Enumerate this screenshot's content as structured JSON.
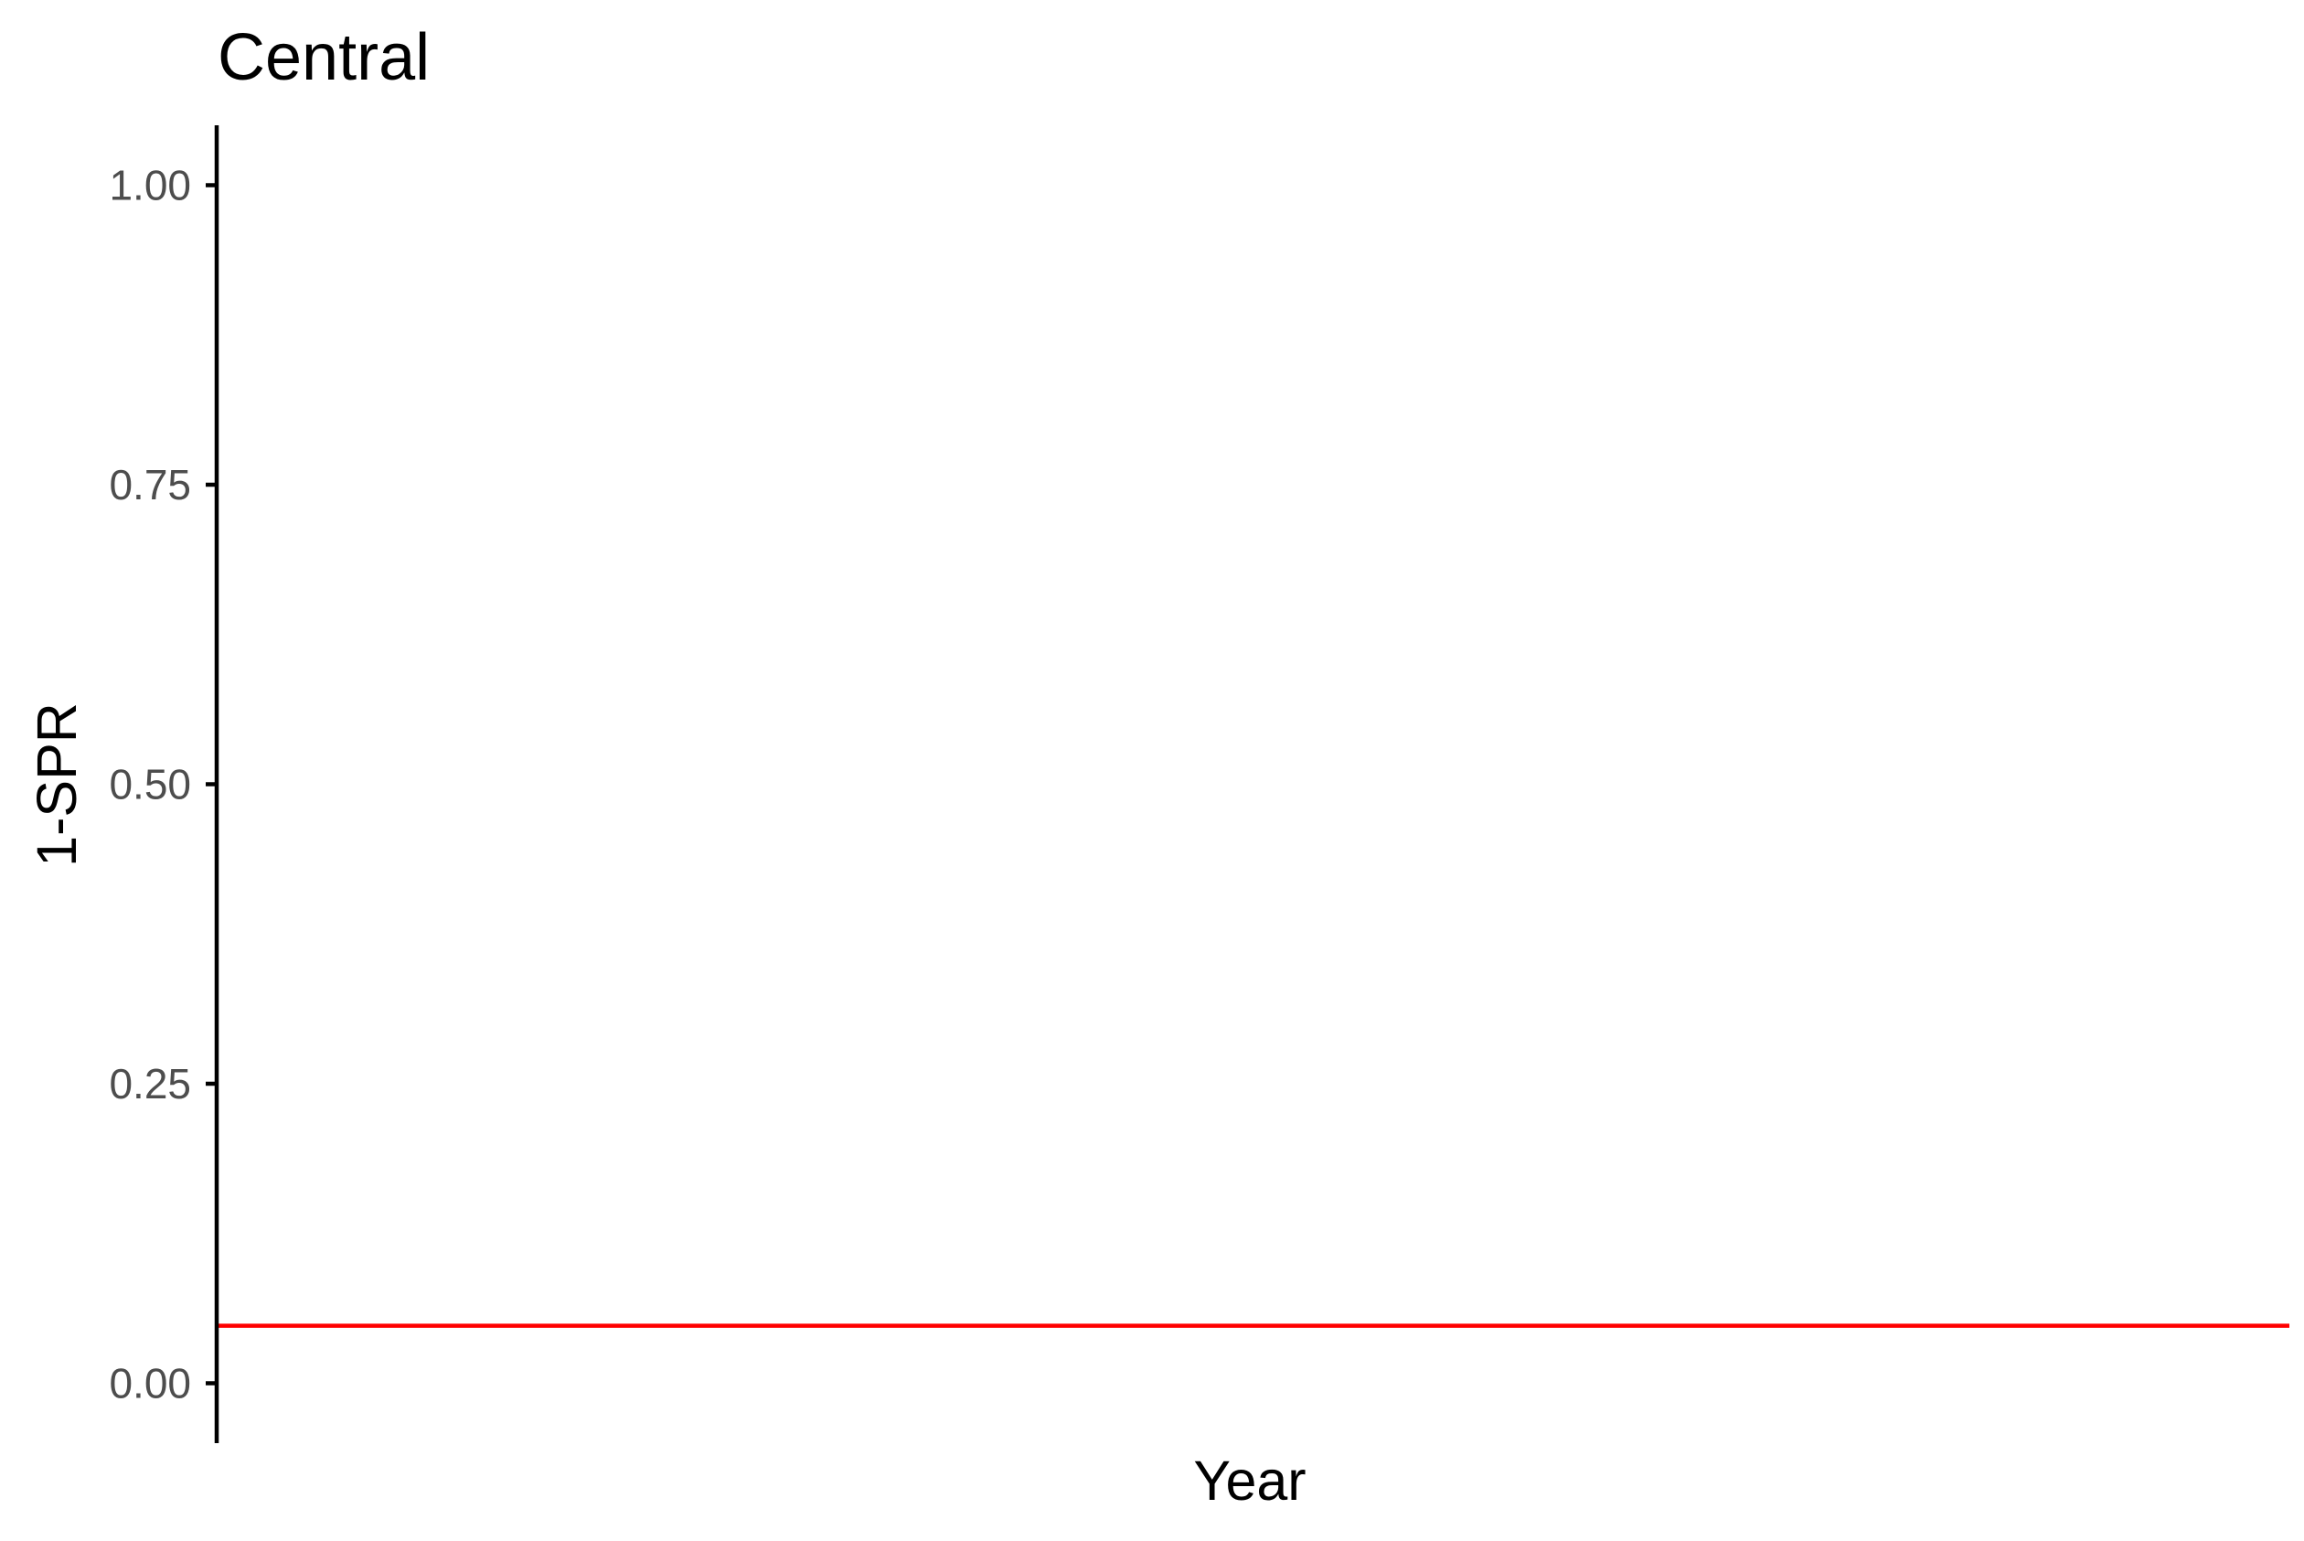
{
  "chart_data": {
    "type": "line",
    "title": "Central",
    "xlabel": "Year",
    "ylabel": "1-SPR",
    "ylim": [
      -0.05,
      1.05
    ],
    "y_ticks": [
      0,
      0.25,
      0.5,
      0.75,
      1
    ],
    "y_tick_labels": [
      "0.00",
      "0.25",
      "0.50",
      "0.75",
      "1.00"
    ],
    "x_ticks": [],
    "grid": false,
    "series": [],
    "reference_lines": [
      {
        "name": "reference-hline",
        "orientation": "horizontal",
        "y": 0.048,
        "color": "#ff0000"
      }
    ],
    "colors": {
      "axis": "#000000",
      "tick_label": "#4d4d4d",
      "reference_line": "#ff0000",
      "background": "#ffffff"
    }
  }
}
